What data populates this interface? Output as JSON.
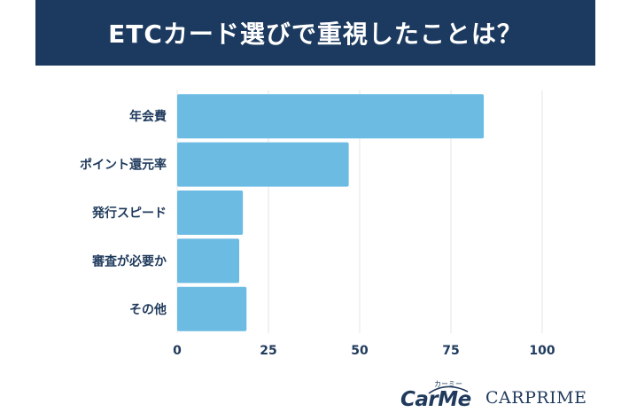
{
  "title": "ETCカード選びで重視したことは？",
  "colors": {
    "banner": "#1c3a5f",
    "bar": "#6bbbe3",
    "text": "#1f3a5c",
    "grid": "#e4e4e4"
  },
  "chart_data": {
    "type": "bar",
    "orientation": "horizontal",
    "categories": [
      "年会費",
      "ポイント還元率",
      "発行スピード",
      "審査が必要か",
      "その他"
    ],
    "values": [
      84,
      47,
      18,
      17,
      19
    ],
    "xlim": [
      0,
      100
    ],
    "xticks": [
      "0",
      "25",
      "50",
      "75",
      "100"
    ],
    "grid": "vertical"
  },
  "logos": {
    "carme": "CarMe",
    "carme_kana": "カーミー",
    "carprime": "CARPRIME"
  }
}
